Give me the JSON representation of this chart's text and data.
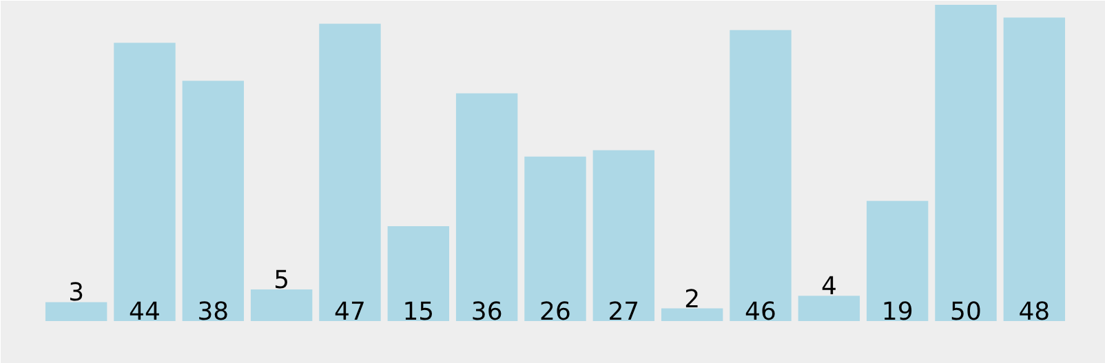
{
  "chart_data": {
    "type": "bar",
    "categories": [
      null,
      null,
      null,
      null,
      null,
      null,
      null,
      null,
      null,
      null,
      null,
      null,
      null,
      null,
      null
    ],
    "values": [
      3,
      44,
      38,
      5,
      47,
      15,
      36,
      26,
      27,
      2,
      46,
      4,
      19,
      50,
      48
    ],
    "color": "#add8e6",
    "data_labels": true
  }
}
